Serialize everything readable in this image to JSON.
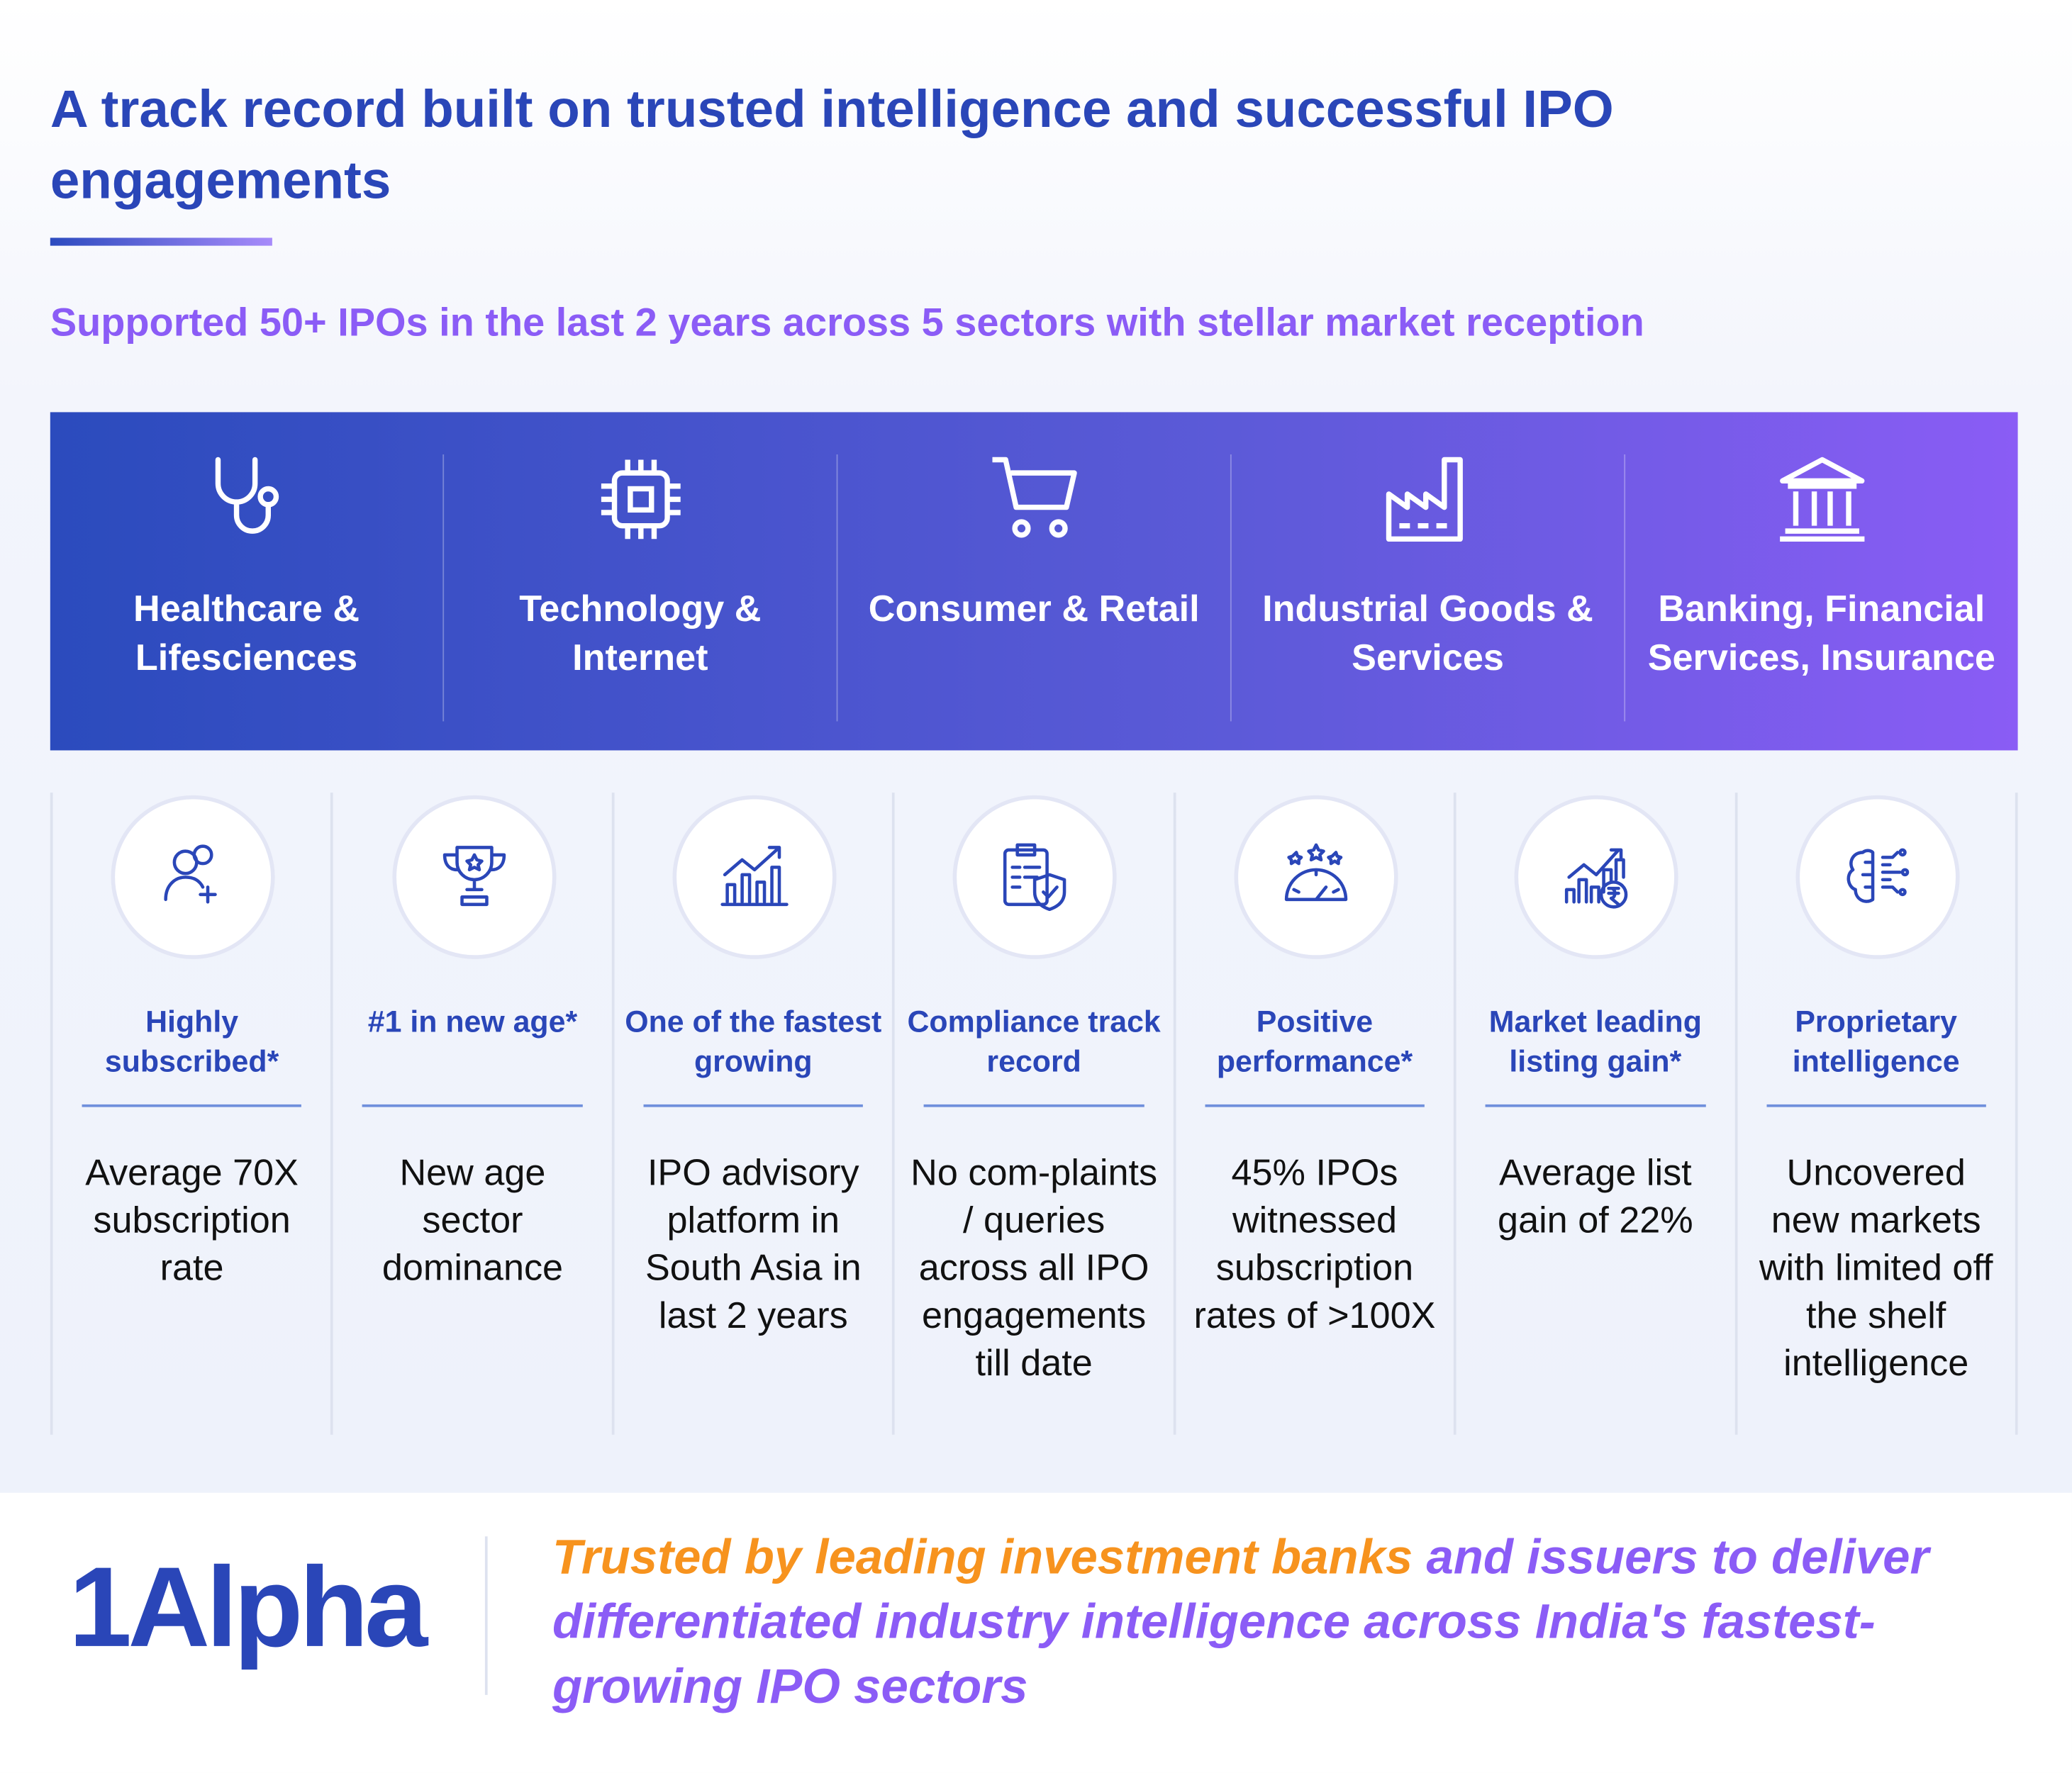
{
  "header": {
    "title": "A track record built on trusted intelligence and successful IPO engagements",
    "subtitle": "Supported 50+ IPOs in the last 2 years across 5 sectors with stellar market reception"
  },
  "sectors": [
    "Healthcare & Lifesciences",
    "Technology & Internet",
    "Consumer & Retail",
    "Industrial Goods & Services",
    "Banking, Financial Services, Insurance"
  ],
  "highlights": [
    {
      "title": "Highly subscribed*",
      "text": "Average 70X subscription rate"
    },
    {
      "title": "#1 in new age*",
      "text": "New age sector dominance"
    },
    {
      "title": "One of the fastest growing",
      "text": "IPO advisory platform in South Asia in last 2 years"
    },
    {
      "title": "Compliance track record",
      "text": "No com-plaints / queries across all IPO engagements till date"
    },
    {
      "title": "Positive performance*",
      "text": "45% IPOs witnessed subscription rates of >100X"
    },
    {
      "title": "Market leading listing gain*",
      "text": "Average list gain of 22%"
    },
    {
      "title": "Proprietary intelligence",
      "text": "Uncovered new markets with limited off the shelf intelligence"
    }
  ],
  "footer": {
    "logo": "1Alpha",
    "tagline_highlight": "Trusted by leading investment banks",
    "tagline_rest": " and issuers to deliver differentiated industry intelligence across India's fastest-growing IPO sectors"
  }
}
